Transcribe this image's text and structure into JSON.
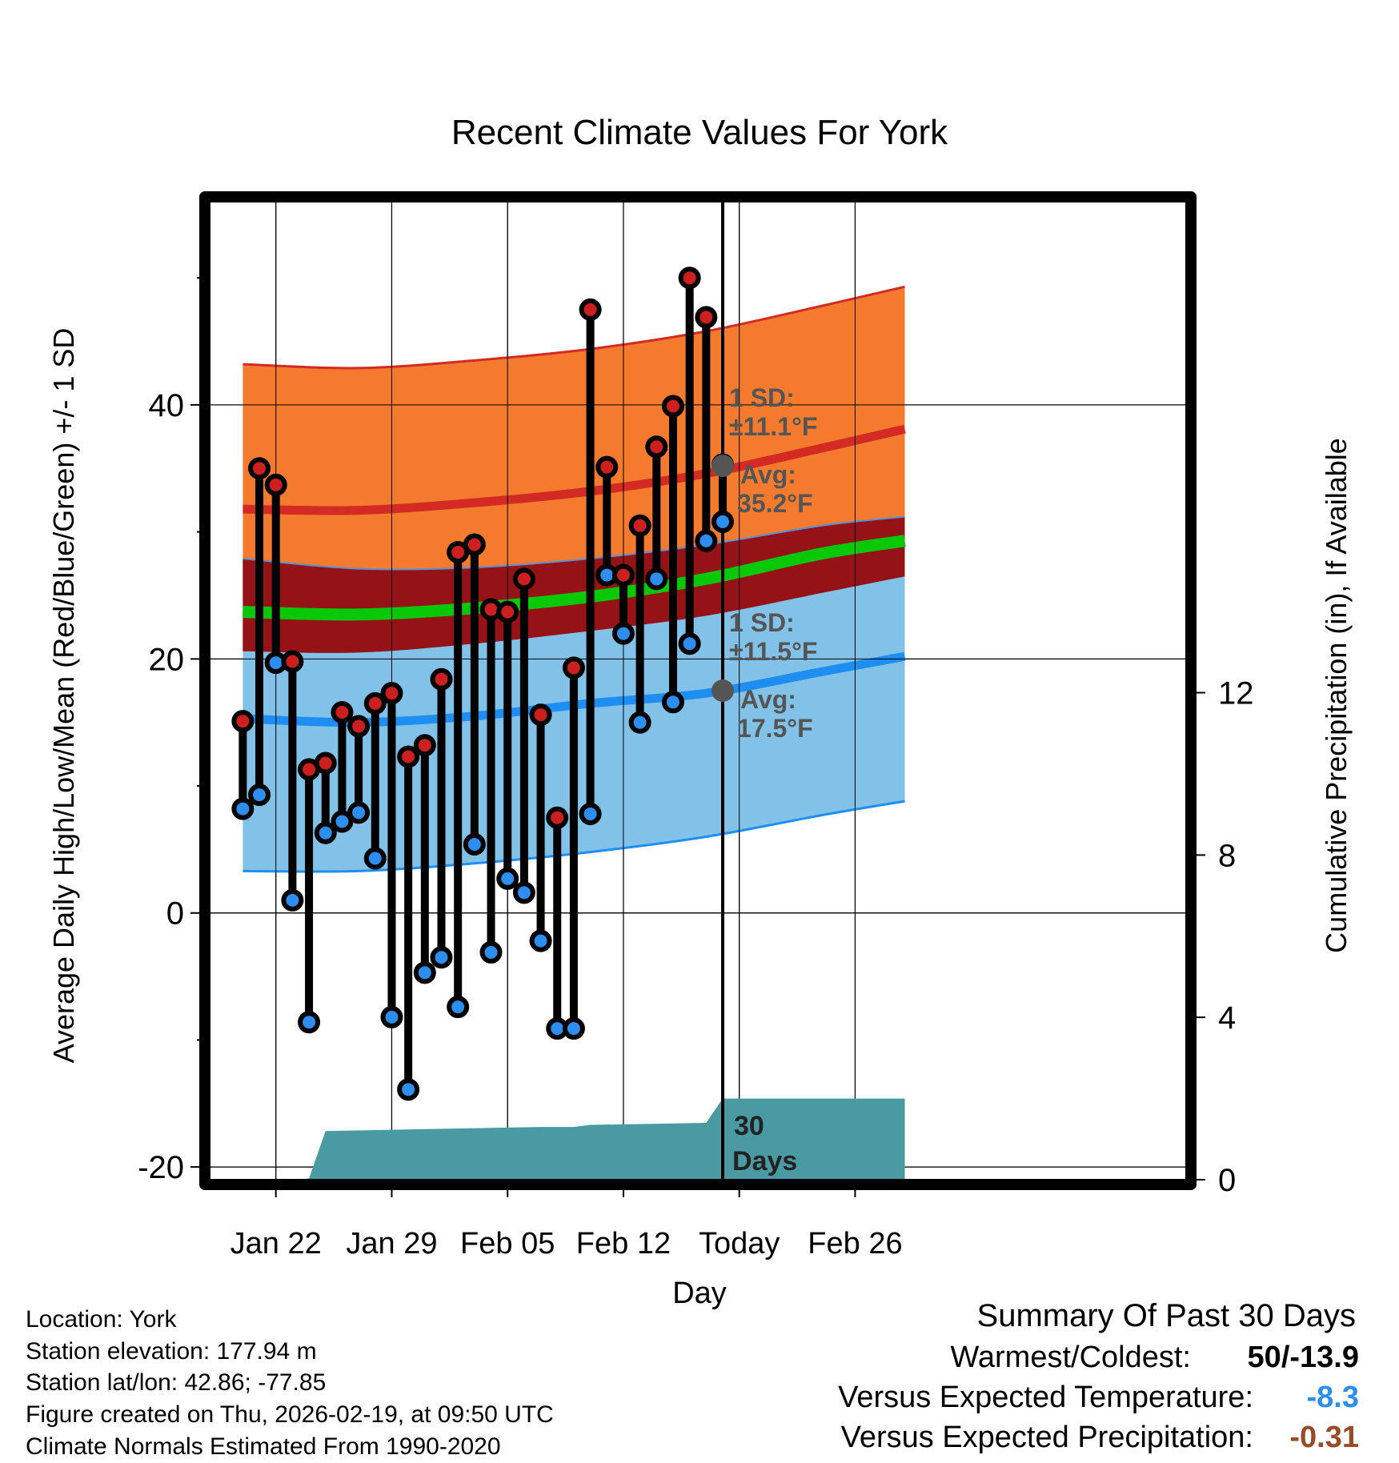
{
  "chart_data": {
    "type": "climate-range",
    "title": "Recent Climate Values For York",
    "xlabel": "Day",
    "ylabel": "Average Daily High/Low/Mean (Red/Blue/Green) +/- 1 SD",
    "y2label": "Cumulative Precipitation (in), If Available",
    "x_day_range": [
      -1,
      58
    ],
    "today_day": 30,
    "ylim": [
      -21,
      56
    ],
    "y_ticks": [
      -20,
      0,
      20,
      40
    ],
    "y_tick_labels": [
      "-20",
      "0",
      "20",
      "40"
    ],
    "y_minor_ticks": [
      -10,
      10,
      30,
      50
    ],
    "y2lim": [
      0,
      24.1
    ],
    "y2_ticks": [
      0,
      4,
      8,
      12
    ],
    "y2_tick_labels": [
      "0",
      "4",
      "8",
      "12"
    ],
    "x_ticks": [
      {
        "day": 3,
        "label": "Jan 22"
      },
      {
        "day": 10,
        "label": "Jan 29"
      },
      {
        "day": 17,
        "label": "Feb 05"
      },
      {
        "day": 24,
        "label": "Feb 12"
      },
      {
        "day": 31,
        "label": "Today"
      },
      {
        "day": 38,
        "label": "Feb 26"
      }
    ],
    "normals_days": [
      1,
      8,
      15,
      22,
      29,
      36,
      41
    ],
    "normal_high_avg": [
      31.8,
      31.7,
      32.3,
      33.2,
      34.6,
      36.6,
      38.1
    ],
    "normal_high_plus_sd": [
      43.2,
      42.9,
      43.5,
      44.4,
      45.8,
      47.8,
      49.3
    ],
    "normal_high_minus_sd": [
      20.6,
      20.5,
      21.2,
      22.2,
      23.4,
      25.2,
      26.5
    ],
    "normal_low_avg": [
      15.3,
      15.0,
      15.5,
      16.5,
      17.3,
      19.0,
      20.2
    ],
    "normal_low_plus_sd": [
      27.9,
      27.1,
      27.2,
      27.9,
      29.0,
      30.5,
      31.2
    ],
    "normal_low_minus_sd": [
      3.3,
      3.3,
      3.9,
      4.8,
      6.0,
      7.7,
      8.8
    ],
    "normal_mean_avg": [
      23.7,
      23.5,
      24.0,
      24.9,
      26.3,
      28.3,
      29.3
    ],
    "series": [
      {
        "name": "Daily High",
        "color": "#cc1f1f",
        "days": [
          1,
          2,
          3,
          4,
          5,
          6,
          7,
          8,
          9,
          10,
          11,
          12,
          13,
          14,
          15,
          16,
          17,
          18,
          19,
          20,
          21,
          22,
          23,
          24,
          25,
          26,
          27,
          28,
          29,
          30
        ],
        "values": [
          15.1,
          35.0,
          33.7,
          19.8,
          11.3,
          11.8,
          15.8,
          14.7,
          16.5,
          17.3,
          12.3,
          13.2,
          18.4,
          28.4,
          29.0,
          23.9,
          23.7,
          26.3,
          15.6,
          7.5,
          19.3,
          47.5,
          35.1,
          26.6,
          30.5,
          36.7,
          39.9,
          50.0,
          46.9,
          35.3
        ]
      },
      {
        "name": "Daily Low",
        "color": "#2d8ef0",
        "days": [
          1,
          2,
          3,
          4,
          5,
          6,
          7,
          8,
          9,
          10,
          11,
          12,
          13,
          14,
          15,
          16,
          17,
          18,
          19,
          20,
          21,
          22,
          23,
          24,
          25,
          26,
          27,
          28,
          29,
          30
        ],
        "values": [
          8.2,
          9.3,
          19.7,
          1.0,
          -8.6,
          6.3,
          7.2,
          7.9,
          4.3,
          -8.2,
          -13.9,
          -4.7,
          -3.5,
          -7.4,
          5.4,
          -3.1,
          2.7,
          1.6,
          -2.2,
          -9.1,
          -9.1,
          7.8,
          26.6,
          22.0,
          15.0,
          26.3,
          16.6,
          21.2,
          29.3,
          30.8
        ]
      }
    ],
    "precip_cumulative": {
      "name": "Cumulative Precipitation",
      "color": "#4a9aa4",
      "days": [
        1,
        4,
        5,
        6,
        19,
        21,
        22,
        29,
        30,
        31,
        41
      ],
      "values": [
        0.0,
        0.0,
        0.03,
        1.2,
        1.3,
        1.3,
        1.35,
        1.4,
        2.0,
        2.0,
        2.0
      ]
    },
    "annotations": {
      "high_sd": "1 SD:",
      "high_sd_value": "±11.1°F",
      "high_avg": "Avg:",
      "high_avg_value": "35.2°F",
      "high_avg_temp": 35.2,
      "low_sd": "1 SD:",
      "low_sd_value": "±11.5°F",
      "low_avg": "Avg:",
      "low_avg_value": "17.5°F",
      "low_avg_temp": 17.5,
      "precip_days_number": "30",
      "precip_days_word": "Days"
    },
    "colors": {
      "high_band": "#f47a2e",
      "high_line": "#d42a24",
      "low_band": "#83c2e8",
      "low_line": "#1e8ef2",
      "overlap_band": "#951217",
      "mean_line": "#08c808",
      "precip": "#4a9aa4",
      "annotation": "#555555"
    }
  },
  "info": {
    "location": "Location: York",
    "elevation": "Station elevation: 177.94 m",
    "latlon": "Station lat/lon: 42.86; -77.85",
    "created": "Figure created on Thu, 2026-02-19, at 09:50 UTC",
    "normals": "Climate Normals Estimated From 1990-2020"
  },
  "summary": {
    "title": "Summary Of Past 30 Days",
    "warmest_label": "Warmest/Coldest:",
    "warmest_value": "50/-13.9",
    "temp_label": "Versus Expected Temperature:",
    "temp_value": "-8.3",
    "temp_color": "#2d8ef0",
    "precip_label": "Versus Expected Precipitation:",
    "precip_value": "-0.31",
    "precip_color": "#9a4b26"
  }
}
